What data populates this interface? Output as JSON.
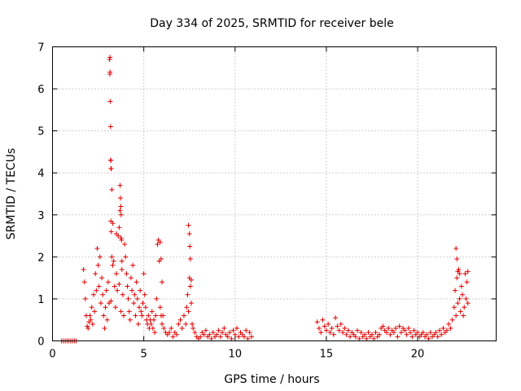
{
  "chart_data": {
    "type": "scatter",
    "title": "Day 334 of 2025, SRMTID for receiver bele",
    "xlabel": "GPS time / hours",
    "ylabel": "SRMTID / TECUs",
    "xlim": [
      0,
      24.3
    ],
    "ylim": [
      0,
      7
    ],
    "xticks": [
      0,
      5,
      10,
      15,
      20
    ],
    "xtick_labels": [
      "0",
      "5",
      "10",
      "15",
      "20"
    ],
    "yticks": [
      0,
      1,
      2,
      3,
      4,
      5,
      6,
      7
    ],
    "ytick_labels": [
      "0",
      "1",
      "2",
      "3",
      "4",
      "5",
      "6",
      "7"
    ],
    "grid": true,
    "series": [
      {
        "name": "SRMTID",
        "color": "#e00000",
        "marker": "plus",
        "x": [
          0.5,
          0.6,
          0.7,
          0.8,
          0.9,
          1.0,
          1.1,
          1.2,
          1.3,
          1.7,
          1.75,
          1.8,
          1.85,
          1.9,
          1.95,
          2.0,
          2.05,
          2.1,
          2.15,
          2.2,
          2.25,
          2.3,
          2.35,
          2.4,
          2.45,
          2.5,
          2.55,
          2.6,
          2.65,
          2.7,
          2.75,
          2.8,
          2.85,
          2.9,
          2.95,
          3.0,
          3.05,
          3.1,
          3.12,
          3.14,
          3.16,
          3.18,
          3.2,
          3.22,
          3.25,
          3.3,
          3.35,
          3.4,
          3.45,
          3.5,
          3.55,
          3.6,
          3.65,
          3.7,
          3.72,
          3.74,
          3.76,
          3.78,
          3.8,
          3.85,
          3.9,
          3.95,
          4.0,
          4.05,
          4.1,
          4.15,
          4.2,
          4.25,
          4.3,
          4.35,
          4.4,
          4.45,
          4.5,
          4.55,
          4.6,
          4.65,
          4.7,
          4.75,
          4.8,
          4.85,
          4.9,
          4.95,
          5.0,
          5.05,
          5.1,
          5.15,
          5.2,
          5.25,
          5.3,
          5.35,
          5.4,
          5.45,
          5.5,
          5.55,
          5.6,
          5.65,
          5.7,
          5.75,
          5.8,
          5.85,
          5.9,
          5.95,
          6.0,
          6.05,
          6.1,
          6.2,
          6.3,
          6.4,
          6.5,
          6.6,
          6.7,
          6.8,
          6.9,
          7.0,
          7.1,
          7.2,
          7.3,
          7.35,
          7.4,
          7.45,
          7.5,
          7.55,
          7.6,
          7.65,
          7.7,
          7.8,
          7.9,
          8.0,
          8.1,
          8.2,
          8.3,
          8.4,
          8.5,
          8.6,
          8.7,
          8.8,
          8.9,
          9.0,
          9.1,
          9.2,
          9.3,
          9.4,
          9.5,
          9.6,
          9.7,
          9.8,
          9.9,
          10.0,
          10.1,
          10.2,
          10.3,
          10.4,
          10.5,
          10.6,
          10.7,
          10.8,
          10.9,
          3.15,
          3.15,
          3.18,
          3.2,
          3.2,
          3.22,
          3.25,
          3.3,
          3.2,
          3.5,
          3.7,
          3.75,
          3.8,
          3.75,
          3.65,
          5.9,
          5.95,
          6.0,
          7.45,
          7.5,
          7.52,
          7.55,
          7.6,
          14.5,
          14.6,
          14.7,
          14.8,
          14.9,
          15.0,
          15.1,
          15.2,
          15.3,
          15.4,
          15.5,
          15.6,
          15.7,
          15.8,
          15.9,
          16.0,
          16.1,
          16.2,
          16.3,
          16.4,
          16.5,
          16.6,
          16.7,
          16.8,
          16.9,
          17.0,
          17.1,
          17.2,
          17.3,
          17.4,
          17.5,
          17.6,
          17.7,
          17.8,
          17.9,
          18.0,
          18.1,
          18.2,
          18.3,
          18.4,
          18.5,
          18.6,
          18.7,
          18.8,
          18.9,
          19.0,
          19.1,
          19.2,
          19.3,
          19.4,
          19.5,
          19.6,
          19.7,
          19.8,
          19.9,
          20.0,
          20.1,
          20.2,
          20.3,
          20.4,
          20.5,
          20.6,
          20.7,
          20.8,
          20.9,
          21.0,
          21.1,
          21.2,
          21.3,
          21.4,
          21.5,
          21.6,
          21.7,
          21.8,
          21.9,
          22.0,
          22.05,
          22.1,
          22.15,
          22.2,
          22.25,
          22.3,
          22.35,
          22.4,
          22.45,
          22.5,
          22.55,
          22.6,
          22.65,
          22.7,
          22.75,
          22.1,
          22.15,
          22.2,
          22.3,
          22.75
        ],
        "y": [
          0,
          0,
          0,
          0,
          0,
          0,
          0,
          0,
          0,
          1.7,
          1.4,
          1.0,
          0.6,
          0.35,
          0.3,
          0.45,
          0.6,
          0.5,
          0.8,
          0.4,
          1.1,
          0.7,
          1.6,
          1.2,
          2.2,
          1.8,
          1.3,
          2.0,
          0.9,
          1.5,
          1.1,
          0.6,
          0.3,
          0.8,
          1.2,
          0.5,
          1.4,
          0.9,
          6.7,
          6.35,
          5.7,
          5.1,
          4.3,
          4.1,
          3.6,
          2.8,
          1.9,
          1.3,
          0.8,
          1.6,
          1.2,
          2.5,
          2.7,
          3.7,
          3.4,
          3.2,
          3.0,
          2.4,
          1.7,
          1.1,
          0.6,
          2.3,
          2.0,
          1.6,
          1.3,
          1.0,
          0.7,
          0.5,
          1.5,
          1.2,
          1.8,
          0.9,
          1.1,
          0.6,
          1.4,
          1.0,
          0.4,
          0.8,
          1.2,
          0.7,
          0.6,
          0.9,
          1.6,
          1.1,
          0.8,
          0.5,
          0.4,
          0.6,
          0.3,
          0.5,
          0.4,
          0.7,
          0.3,
          0.5,
          0.2,
          0.6,
          1.0,
          2.3,
          2.4,
          1.9,
          0.8,
          0.6,
          0.4,
          0.6,
          0.3,
          0.2,
          0.15,
          0.2,
          0.3,
          0.1,
          0.2,
          0.15,
          0.4,
          0.5,
          0.3,
          0.6,
          0.4,
          0.8,
          1.1,
          0.7,
          1.5,
          1.3,
          0.9,
          0.4,
          0.3,
          0.2,
          0.1,
          0.05,
          0.1,
          0.2,
          0.15,
          0.25,
          0.1,
          0.15,
          0.05,
          0.2,
          0.1,
          0.15,
          0.25,
          0.1,
          0.2,
          0.3,
          0.15,
          0.1,
          0.2,
          0.05,
          0.25,
          0.15,
          0.3,
          0.1,
          0.2,
          0.15,
          0.1,
          0.25,
          0.05,
          0.2,
          0.1,
          6.75,
          6.4,
          4.3,
          4.1,
          2.85,
          2.6,
          2.0,
          1.8,
          0.95,
          2.55,
          3.1,
          2.45,
          1.9,
          0.7,
          1.35,
          2.35,
          1.95,
          1.4,
          2.75,
          2.55,
          2.25,
          1.95,
          1.45,
          0.45,
          0.3,
          0.2,
          0.5,
          0.35,
          0.25,
          0.4,
          0.2,
          0.3,
          0.15,
          0.55,
          0.35,
          0.25,
          0.4,
          0.2,
          0.3,
          0.15,
          0.25,
          0.1,
          0.2,
          0.15,
          0.1,
          0.25,
          0.05,
          0.2,
          0.1,
          0.15,
          0.05,
          0.2,
          0.1,
          0.15,
          0.05,
          0.2,
          0.1,
          0.15,
          0.3,
          0.35,
          0.25,
          0.2,
          0.3,
          0.15,
          0.25,
          0.2,
          0.3,
          0.1,
          0.35,
          0.2,
          0.3,
          0.25,
          0.15,
          0.3,
          0.2,
          0.1,
          0.25,
          0.15,
          0.2,
          0.1,
          0.15,
          0.2,
          0.1,
          0.15,
          0.05,
          0.2,
          0.1,
          0.15,
          0.2,
          0.1,
          0.25,
          0.15,
          0.3,
          0.2,
          0.25,
          0.4,
          0.3,
          0.5,
          0.8,
          1.2,
          0.6,
          1.5,
          0.9,
          1.7,
          1.0,
          0.7,
          1.3,
          1.1,
          0.6,
          0.8,
          1.6,
          1.0,
          1.4,
          0.9,
          2.2,
          1.95,
          1.65,
          1.6,
          1.65
        ]
      }
    ]
  }
}
